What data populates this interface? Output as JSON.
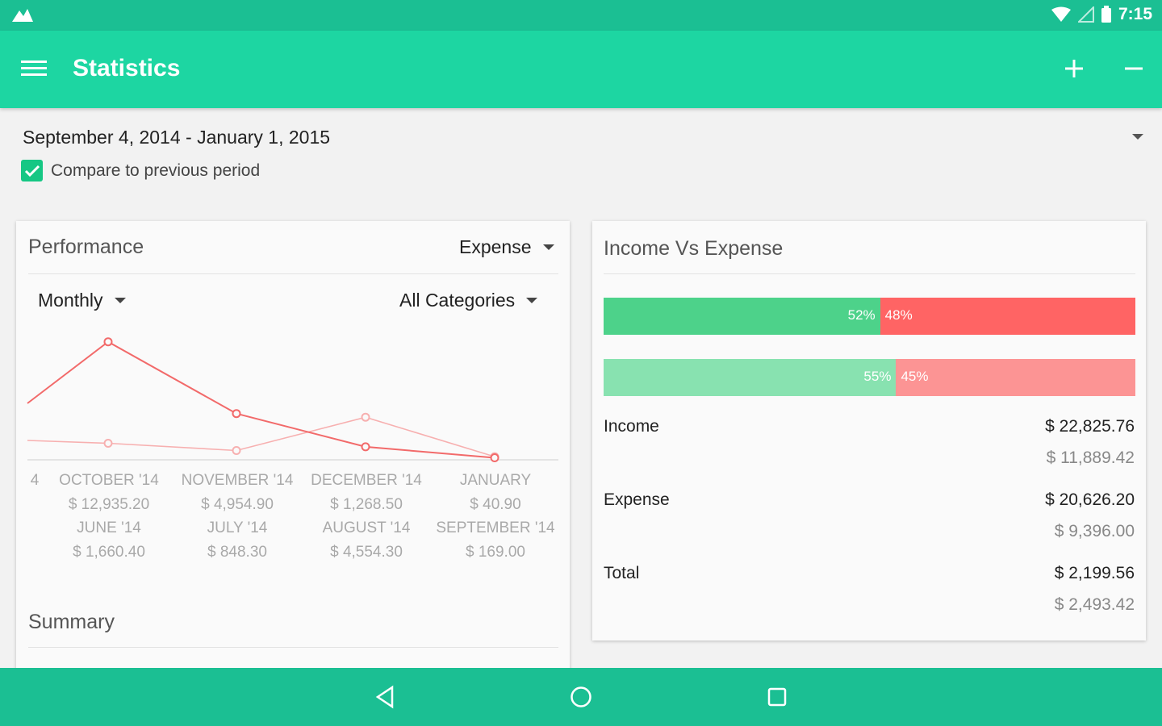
{
  "status_bar": {
    "time": "7:15",
    "icons": [
      "app-logo-icon",
      "wifi-icon",
      "signal-icon",
      "battery-icon"
    ]
  },
  "app_bar": {
    "title": "Statistics",
    "icons": [
      "menu-icon",
      "plus-icon",
      "minus-icon"
    ]
  },
  "filter": {
    "date_range": "September 4, 2014 - January 1, 2015",
    "compare_label": "Compare to previous period",
    "compare_checked": true
  },
  "performance": {
    "title": "Performance",
    "type_dropdown": "Expense",
    "period_dropdown": "Monthly",
    "category_dropdown": "All Categories",
    "partial_label": "4",
    "columns": [
      {
        "month": "OCTOBER '14",
        "amount": "$ 12,935.20",
        "prev_month": "JUNE '14",
        "prev_amount": "$ 1,660.40"
      },
      {
        "month": "NOVEMBER '14",
        "amount": "$ 4,954.90",
        "prev_month": "JULY '14",
        "prev_amount": "$ 848.30"
      },
      {
        "month": "DECEMBER '14",
        "amount": "$ 1,268.50",
        "prev_month": "AUGUST '14",
        "prev_amount": "$ 4,554.30"
      },
      {
        "month": "JANUARY",
        "amount": "$ 40.90",
        "prev_month": "SEPTEMBER '14",
        "prev_amount": "$ 169.00"
      }
    ],
    "summary_title": "Summary"
  },
  "chart_data": {
    "type": "line",
    "categories": [
      "OCTOBER '14",
      "NOVEMBER '14",
      "DECEMBER '14",
      "JANUARY"
    ],
    "series": [
      {
        "values": [
          12935.2,
          4954.9,
          1268.5,
          40.9
        ],
        "color": "#f26a6a"
      },
      {
        "values": [
          1660.4,
          848.3,
          4554.3,
          169.0
        ],
        "color": "#f7b0b0"
      }
    ],
    "ylim": [
      0,
      13000
    ],
    "grid": false
  },
  "income_vs_expense": {
    "title": "Income Vs Expense",
    "bars": [
      {
        "income_pct": 52,
        "expense_pct": 48,
        "income_label": "52%",
        "expense_label": "48%",
        "income_color": "#4dd28a",
        "expense_color": "#ff6464"
      },
      {
        "income_pct": 55,
        "expense_pct": 45,
        "income_label": "55%",
        "expense_label": "45%",
        "income_color": "#88e2b0",
        "expense_color": "#fc9494"
      }
    ],
    "rows": [
      {
        "label": "Income",
        "current": "$ 22,825.76",
        "previous": "$ 11,889.42"
      },
      {
        "label": "Expense",
        "current": "$ 20,626.20",
        "previous": "$ 9,396.00"
      },
      {
        "label": "Total",
        "current": "$ 2,199.56",
        "previous": "$ 2,493.42"
      }
    ]
  },
  "nav_bar": {
    "icons": [
      "back-icon",
      "home-icon",
      "recents-icon"
    ]
  },
  "colors": {
    "status_bar": "#1bbf93",
    "app_bar": "#1dd6a2",
    "income": "#4dd28a",
    "expense": "#ff6464"
  }
}
